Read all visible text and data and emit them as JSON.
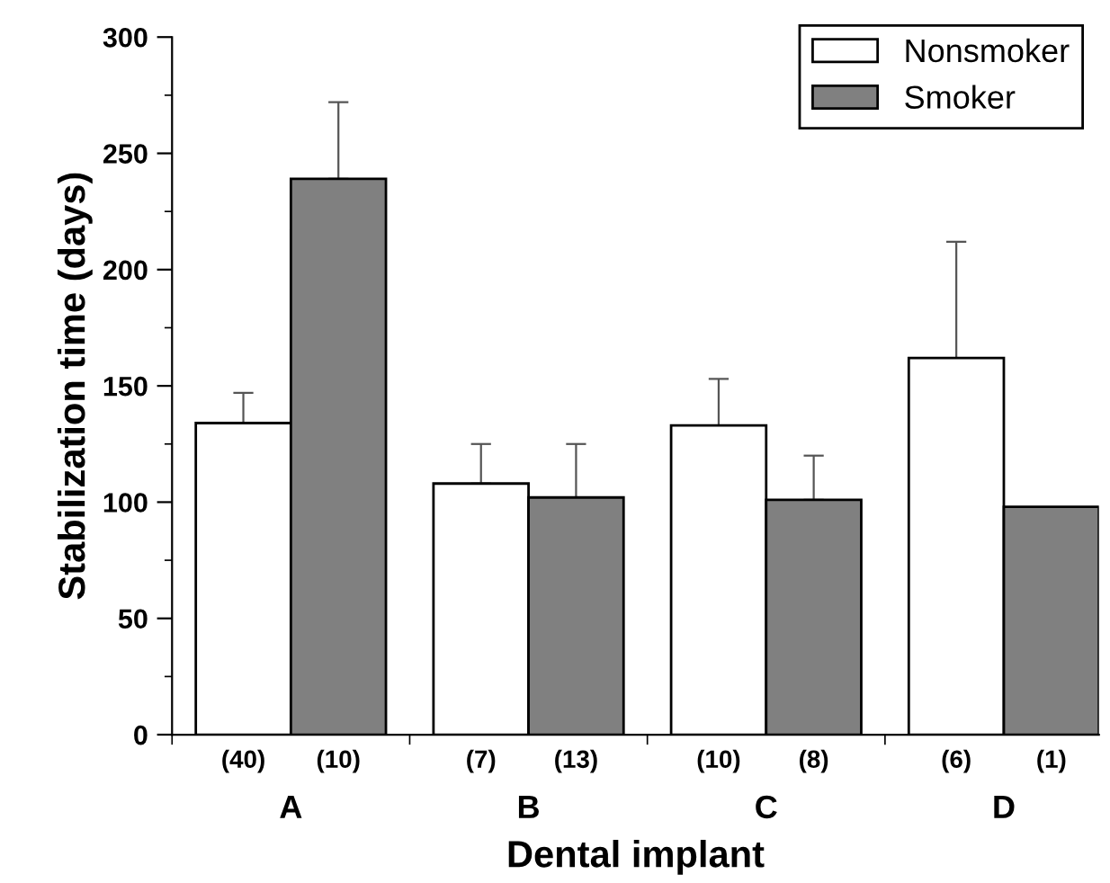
{
  "chart_data": {
    "type": "bar",
    "xlabel": "Dental implant",
    "ylabel": "Stabilization time (days)",
    "categories": [
      "A",
      "B",
      "C",
      "D"
    ],
    "series": [
      {
        "name": "Nonsmoker",
        "color": "#ffffff",
        "values": [
          134,
          108,
          133,
          162
        ],
        "errors": [
          13,
          17,
          20,
          50
        ]
      },
      {
        "name": "Smoker",
        "color": "#808080",
        "values": [
          239,
          102,
          101,
          98
        ],
        "errors": [
          33,
          23,
          19,
          null
        ]
      }
    ],
    "annotations": [
      "(40)",
      "(10)",
      "(7)",
      "(13)",
      "(10)",
      "(8)",
      "(6)",
      "(1)"
    ],
    "ylim": [
      0,
      300
    ],
    "yticks": [
      0,
      50,
      100,
      150,
      200,
      250,
      300
    ],
    "grid": false,
    "legend": "top right"
  }
}
